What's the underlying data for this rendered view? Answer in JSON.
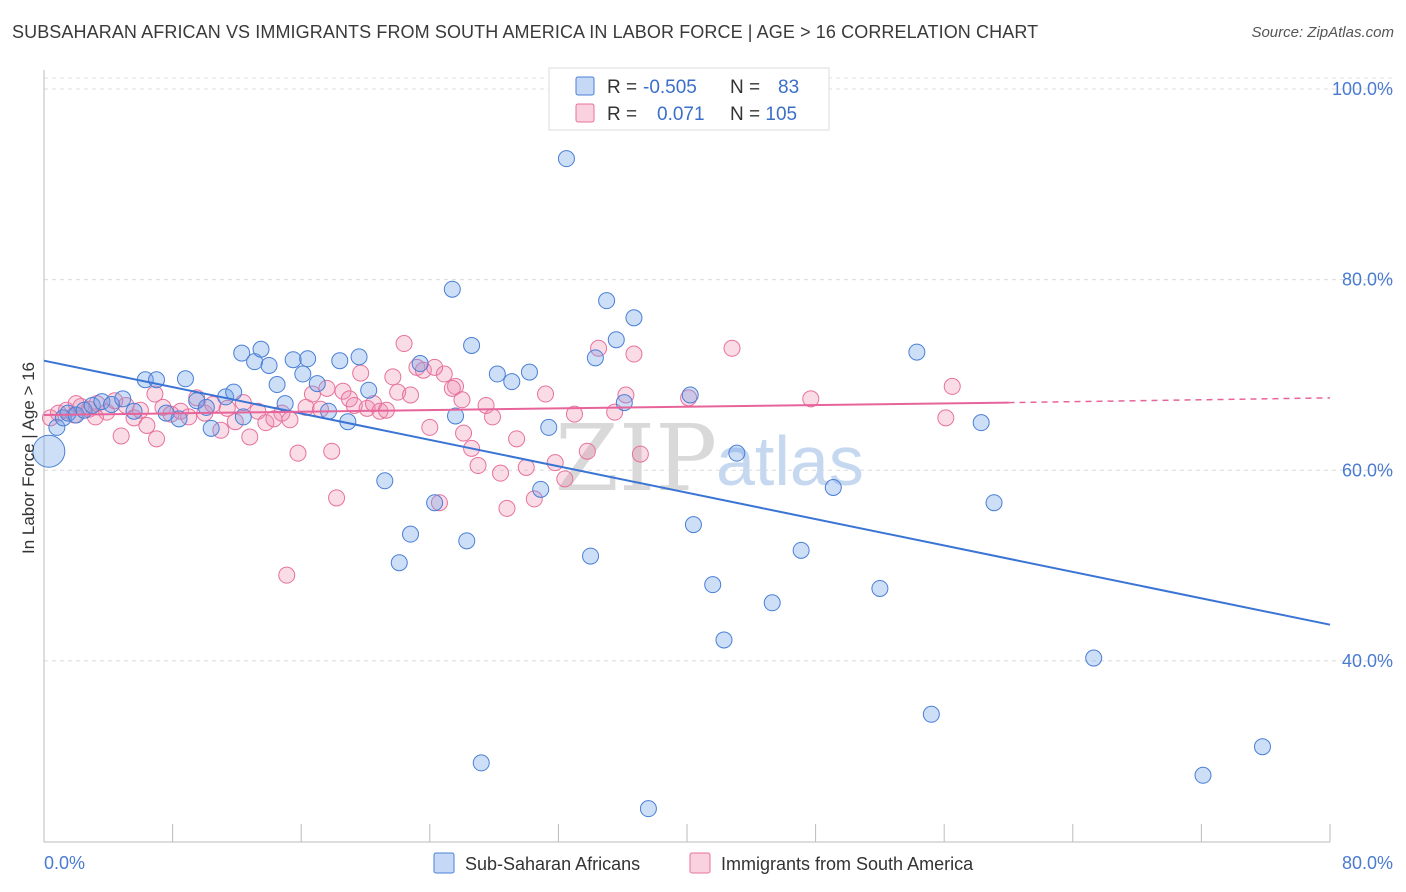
{
  "header": {
    "title": "SUBSAHARAN AFRICAN VS IMMIGRANTS FROM SOUTH AMERICA IN LABOR FORCE | AGE > 16 CORRELATION CHART",
    "source": "Source: ZipAtlas.com"
  },
  "watermark": {
    "zip": "ZIP",
    "atlas": "atlas"
  },
  "legend": {
    "rows": [
      {
        "r_label": "R =",
        "r_value": "-0.505",
        "n_label": "N =",
        "n_value": "83",
        "color": "#6fa0e8"
      },
      {
        "r_label": "R =",
        "r_value": "0.071",
        "n_label": "N = 105",
        "n_value": "",
        "color": "#f08cb0"
      }
    ]
  },
  "chart_data": {
    "type": "scatter",
    "title": "SUBSAHARAN AFRICAN VS IMMIGRANTS FROM SOUTH AMERICA IN LABOR FORCE | AGE > 16 CORRELATION CHART",
    "xlabel": "",
    "ylabel": "In Labor Force | Age > 16",
    "xlim": [
      0,
      80
    ],
    "ylim": [
      21,
      102
    ],
    "x_tick_labels": [
      "0.0%",
      "80.0%"
    ],
    "y_ticks": [
      40,
      60,
      80,
      100
    ],
    "y_tick_labels": [
      "40.0%",
      "60.0%",
      "80.0%",
      "100.0%"
    ],
    "grid": true,
    "legend_position": "top-center",
    "series": [
      {
        "name": "Sub-Saharan Africans",
        "color": "#6fa0e8",
        "stroke": "#4a7fd6",
        "fill_opacity": 0.35,
        "R": -0.505,
        "N": 83,
        "trend": {
          "x": [
            0,
            80
          ],
          "y": [
            71.5,
            43.8
          ]
        },
        "points": [
          [
            0.3,
            62.0
          ],
          [
            0.8,
            64.5
          ],
          [
            1.2,
            65.5
          ],
          [
            1.5,
            66.0
          ],
          [
            2.0,
            65.8
          ],
          [
            2.5,
            66.3
          ],
          [
            3.0,
            66.8
          ],
          [
            3.6,
            67.2
          ],
          [
            4.2,
            66.9
          ],
          [
            4.9,
            67.5
          ],
          [
            5.6,
            66.2
          ],
          [
            6.3,
            69.5
          ],
          [
            7.0,
            69.5
          ],
          [
            7.6,
            66.0
          ],
          [
            8.4,
            65.4
          ],
          [
            8.8,
            69.6
          ],
          [
            9.5,
            67.3
          ],
          [
            10.1,
            66.6
          ],
          [
            10.4,
            64.4
          ],
          [
            11.3,
            67.7
          ],
          [
            11.8,
            68.2
          ],
          [
            12.3,
            72.3
          ],
          [
            12.4,
            65.6
          ],
          [
            13.1,
            71.4
          ],
          [
            13.5,
            72.7
          ],
          [
            14.0,
            71.0
          ],
          [
            14.5,
            69.0
          ],
          [
            15.0,
            67.0
          ],
          [
            15.5,
            71.6
          ],
          [
            16.1,
            70.1
          ],
          [
            16.4,
            71.7
          ],
          [
            17.0,
            69.1
          ],
          [
            17.7,
            66.2
          ],
          [
            18.4,
            71.5
          ],
          [
            18.9,
            65.1
          ],
          [
            19.6,
            71.9
          ],
          [
            20.2,
            68.4
          ],
          [
            21.2,
            58.9
          ],
          [
            22.1,
            50.3
          ],
          [
            22.8,
            53.3
          ],
          [
            23.4,
            71.2
          ],
          [
            24.3,
            56.6
          ],
          [
            25.4,
            79.0
          ],
          [
            25.6,
            65.7
          ],
          [
            26.3,
            52.6
          ],
          [
            26.6,
            73.1
          ],
          [
            27.2,
            29.3
          ],
          [
            28.2,
            70.1
          ],
          [
            29.1,
            69.3
          ],
          [
            30.2,
            70.3
          ],
          [
            30.9,
            58.0
          ],
          [
            31.4,
            64.5
          ],
          [
            32.5,
            92.7
          ],
          [
            34.0,
            51.0
          ],
          [
            34.3,
            71.8
          ],
          [
            35.0,
            77.8
          ],
          [
            35.6,
            73.7
          ],
          [
            36.1,
            67.1
          ],
          [
            36.7,
            76.0
          ],
          [
            37.6,
            24.5
          ],
          [
            40.2,
            67.9
          ],
          [
            40.4,
            54.3
          ],
          [
            41.6,
            48.0
          ],
          [
            42.3,
            42.2
          ],
          [
            43.1,
            61.8
          ],
          [
            45.3,
            46.1
          ],
          [
            47.1,
            51.6
          ],
          [
            49.1,
            58.2
          ],
          [
            52.0,
            47.6
          ],
          [
            54.3,
            72.4
          ],
          [
            55.2,
            34.4
          ],
          [
            58.3,
            65.0
          ],
          [
            59.1,
            56.6
          ],
          [
            65.3,
            40.3
          ],
          [
            72.1,
            28.0
          ],
          [
            75.8,
            31.0
          ]
        ]
      },
      {
        "name": "Immigrants from South America",
        "color": "#f08cb0",
        "stroke": "#e7729c",
        "fill_opacity": 0.3,
        "R": 0.071,
        "N": 105,
        "trend": {
          "x": [
            0,
            60
          ],
          "y": [
            65.8,
            67.1
          ]
        },
        "trend_extension": {
          "x": [
            60,
            80
          ],
          "y": [
            67.1,
            67.6
          ]
        },
        "points": [
          [
            0.4,
            65.5
          ],
          [
            0.9,
            66.0
          ],
          [
            1.4,
            66.3
          ],
          [
            1.9,
            65.8
          ],
          [
            2.3,
            66.7
          ],
          [
            2.8,
            66.4
          ],
          [
            3.3,
            67.0
          ],
          [
            3.9,
            66.1
          ],
          [
            4.4,
            67.3
          ],
          [
            5.1,
            66.8
          ],
          [
            5.6,
            65.5
          ],
          [
            6.0,
            66.3
          ],
          [
            6.4,
            64.7
          ],
          [
            6.9,
            68.0
          ],
          [
            7.4,
            66.6
          ],
          [
            7.9,
            65.9
          ],
          [
            8.5,
            66.2
          ],
          [
            9.0,
            65.6
          ],
          [
            9.5,
            67.6
          ],
          [
            10.0,
            66.0
          ],
          [
            10.5,
            66.9
          ],
          [
            11.0,
            64.2
          ],
          [
            11.4,
            66.5
          ],
          [
            11.9,
            65.1
          ],
          [
            12.4,
            67.1
          ],
          [
            12.8,
            63.5
          ],
          [
            13.3,
            66.2
          ],
          [
            13.8,
            65.0
          ],
          [
            14.3,
            65.4
          ],
          [
            14.8,
            66.0
          ],
          [
            15.3,
            65.3
          ],
          [
            15.8,
            61.8
          ],
          [
            16.3,
            66.6
          ],
          [
            16.7,
            68.0
          ],
          [
            17.2,
            66.4
          ],
          [
            17.6,
            68.6
          ],
          [
            17.9,
            62.0
          ],
          [
            18.2,
            57.1
          ],
          [
            18.6,
            68.3
          ],
          [
            19.0,
            67.5
          ],
          [
            19.3,
            66.8
          ],
          [
            19.7,
            70.2
          ],
          [
            20.1,
            66.5
          ],
          [
            20.5,
            67.0
          ],
          [
            20.9,
            66.2
          ],
          [
            21.3,
            66.3
          ],
          [
            21.7,
            69.8
          ],
          [
            22.0,
            68.2
          ],
          [
            22.4,
            73.3
          ],
          [
            22.8,
            67.9
          ],
          [
            23.2,
            70.8
          ],
          [
            23.6,
            70.5
          ],
          [
            24.0,
            64.5
          ],
          [
            24.6,
            56.6
          ],
          [
            24.9,
            70.1
          ],
          [
            25.6,
            68.8
          ],
          [
            26.1,
            63.9
          ],
          [
            26.6,
            62.3
          ],
          [
            27.0,
            60.5
          ],
          [
            27.5,
            66.8
          ],
          [
            27.9,
            65.6
          ],
          [
            28.4,
            59.7
          ],
          [
            28.8,
            56.0
          ],
          [
            29.4,
            63.3
          ],
          [
            30.0,
            60.3
          ],
          [
            30.5,
            57.0
          ],
          [
            31.2,
            68.0
          ],
          [
            31.8,
            60.8
          ],
          [
            32.4,
            59.1
          ],
          [
            33.0,
            65.9
          ],
          [
            33.8,
            62.0
          ],
          [
            34.5,
            72.8
          ],
          [
            35.5,
            66.1
          ],
          [
            36.2,
            67.9
          ],
          [
            37.1,
            61.7
          ],
          [
            36.7,
            72.2
          ],
          [
            40.1,
            67.6
          ],
          [
            42.8,
            72.8
          ],
          [
            47.7,
            67.5
          ],
          [
            56.5,
            68.8
          ],
          [
            56.1,
            65.5
          ],
          [
            25.4,
            68.6
          ],
          [
            26.0,
            67.4
          ],
          [
            24.3,
            70.8
          ],
          [
            15.1,
            49.0
          ],
          [
            7.0,
            63.3
          ],
          [
            4.8,
            63.6
          ],
          [
            2.0,
            67.0
          ],
          [
            3.2,
            65.6
          ]
        ]
      }
    ],
    "annotations": []
  },
  "bottom_legend": {
    "items": [
      {
        "label": "Sub-Saharan Africans",
        "color": "#6fa0e8"
      },
      {
        "label": "Immigrants from South America",
        "color": "#f08cb0"
      }
    ]
  }
}
